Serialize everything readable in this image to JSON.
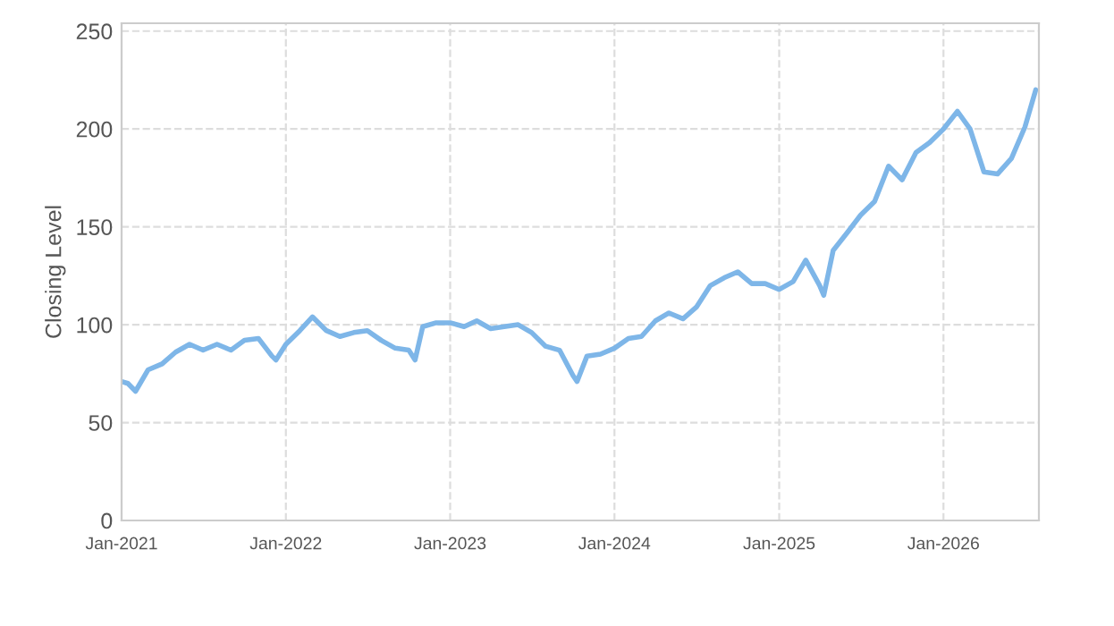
{
  "chart_data": {
    "type": "line",
    "ylabel": "Closing Level",
    "x": [
      "2021-01-01",
      "2021-01-15",
      "2021-02-01",
      "2021-03-01",
      "2021-04-01",
      "2021-05-01",
      "2021-06-01",
      "2021-07-01",
      "2021-08-01",
      "2021-09-01",
      "2021-10-01",
      "2021-11-01",
      "2021-12-01",
      "2021-12-10",
      "2022-01-01",
      "2022-02-01",
      "2022-03-01",
      "2022-04-01",
      "2022-05-01",
      "2022-06-01",
      "2022-07-01",
      "2022-08-01",
      "2022-09-01",
      "2022-10-01",
      "2022-10-15",
      "2022-11-01",
      "2022-12-01",
      "2023-01-01",
      "2023-02-01",
      "2023-03-01",
      "2023-04-01",
      "2023-05-01",
      "2023-06-01",
      "2023-07-01",
      "2023-08-01",
      "2023-09-01",
      "2023-10-01",
      "2023-10-10",
      "2023-11-01",
      "2023-12-01",
      "2024-01-01",
      "2024-02-01",
      "2024-03-01",
      "2024-04-01",
      "2024-05-01",
      "2024-06-01",
      "2024-07-01",
      "2024-08-01",
      "2024-09-01",
      "2024-10-01",
      "2024-11-01",
      "2024-12-01",
      "2025-01-01",
      "2025-02-01",
      "2025-03-01",
      "2025-04-01",
      "2025-04-10",
      "2025-05-01",
      "2025-06-01",
      "2025-07-01",
      "2025-08-01",
      "2025-09-01",
      "2025-10-01",
      "2025-11-01",
      "2025-12-01",
      "2026-01-01",
      "2026-02-01",
      "2026-03-01",
      "2026-04-01",
      "2026-05-01",
      "2026-06-01",
      "2026-07-01",
      "2026-07-25"
    ],
    "series": [
      {
        "color": "#7eb6e8",
        "values": [
          71,
          70,
          66,
          77,
          80,
          86,
          90,
          87,
          90,
          87,
          92,
          93,
          84,
          82,
          90,
          97,
          104,
          97,
          94,
          96,
          97,
          92,
          88,
          87,
          82,
          99,
          101,
          101,
          99,
          102,
          98,
          99,
          100,
          96,
          89,
          87,
          74,
          71,
          84,
          85,
          88,
          93,
          94,
          102,
          106,
          103,
          109,
          120,
          124,
          127,
          121,
          121,
          118,
          122,
          133,
          120,
          115,
          138,
          147,
          156,
          163,
          181,
          174,
          188,
          193,
          200,
          209,
          200,
          178,
          177,
          185,
          201,
          220
        ]
      }
    ],
    "xlim": [
      "2021-01-01",
      "2026-08-01"
    ],
    "xticks": [
      {
        "value": "2021-01-01",
        "label": "Jan-2021"
      },
      {
        "value": "2022-01-01",
        "label": "Jan-2022"
      },
      {
        "value": "2023-01-01",
        "label": "Jan-2023"
      },
      {
        "value": "2024-01-01",
        "label": "Jan-2024"
      },
      {
        "value": "2025-01-01",
        "label": "Jan-2025"
      },
      {
        "value": "2026-01-01",
        "label": "Jan-2026"
      }
    ],
    "ylim": [
      0,
      254
    ],
    "yticks": [
      0,
      50,
      100,
      150,
      200,
      250
    ],
    "grid": true,
    "marker": "none",
    "line_style": "solid"
  }
}
